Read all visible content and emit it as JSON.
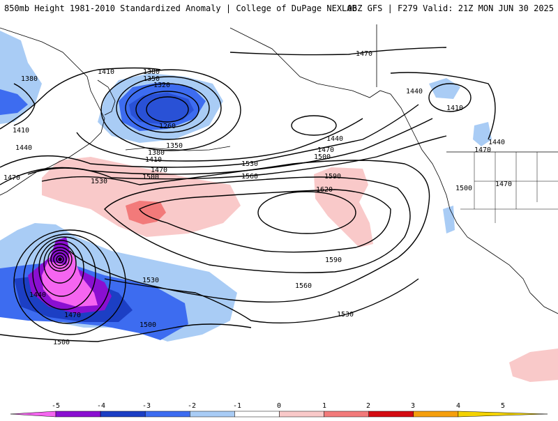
{
  "header": {
    "title_left": "850mb Height 1981-2010 Standardized Anomaly | College of DuPage NEXLAB",
    "title_right": "06Z GFS | F279 Valid: 21Z MON JUN 30 2025"
  },
  "contour_labels": [
    {
      "id": "l1470a",
      "text": "1470"
    },
    {
      "id": "l1380a",
      "text": "1380"
    },
    {
      "id": "l1410a",
      "text": "1410"
    },
    {
      "id": "l1380b",
      "text": "1380"
    },
    {
      "id": "l1350a",
      "text": "1350"
    },
    {
      "id": "l1320a",
      "text": "1320"
    },
    {
      "id": "l1260a",
      "text": "1260"
    },
    {
      "id": "l1410b",
      "text": "1410"
    },
    {
      "id": "l1440a",
      "text": "1440"
    },
    {
      "id": "l1350b",
      "text": "1350"
    },
    {
      "id": "l1380c",
      "text": "1380"
    },
    {
      "id": "l1410c",
      "text": "1410"
    },
    {
      "id": "l1470b",
      "text": "1470"
    },
    {
      "id": "l1500a",
      "text": "1500"
    },
    {
      "id": "l1530a",
      "text": "1530"
    },
    {
      "id": "l1560a",
      "text": "1560"
    },
    {
      "id": "l1590a",
      "text": "1590"
    },
    {
      "id": "l1620a",
      "text": "1620"
    },
    {
      "id": "l1530b",
      "text": "1530"
    },
    {
      "id": "l1440b",
      "text": "1440"
    },
    {
      "id": "l1470c",
      "text": "1470"
    },
    {
      "id": "l1500b",
      "text": "1500"
    },
    {
      "id": "l1440c",
      "text": "1440"
    },
    {
      "id": "l1410d",
      "text": "1410"
    },
    {
      "id": "l1440d",
      "text": "1440"
    },
    {
      "id": "l1470d",
      "text": "1470"
    },
    {
      "id": "l1470e",
      "text": "1470"
    },
    {
      "id": "l1500c",
      "text": "1500"
    },
    {
      "id": "l1470f",
      "text": "1470"
    },
    {
      "id": "l1440e",
      "text": "1440"
    },
    {
      "id": "l1470g",
      "text": "1470"
    },
    {
      "id": "l1530c",
      "text": "1530"
    },
    {
      "id": "l1500d",
      "text": "1500"
    },
    {
      "id": "l1500e",
      "text": "1500"
    },
    {
      "id": "l1590b",
      "text": "1590"
    },
    {
      "id": "l1560b",
      "text": "1560"
    },
    {
      "id": "l1530d",
      "text": "1530"
    }
  ],
  "colorbar": {
    "ticks": [
      "-5",
      "-4",
      "-3",
      "-2",
      "-1",
      "0",
      "1",
      "2",
      "3",
      "4",
      "5"
    ],
    "colors": [
      "#f565f0",
      "#8a0fd1",
      "#1c3fc4",
      "#3d6cf0",
      "#a9ccf5",
      "#ffffff",
      "#f9c9c9",
      "#f27a7a",
      "#d40b12",
      "#f59f0d",
      "#f4d300"
    ]
  }
}
